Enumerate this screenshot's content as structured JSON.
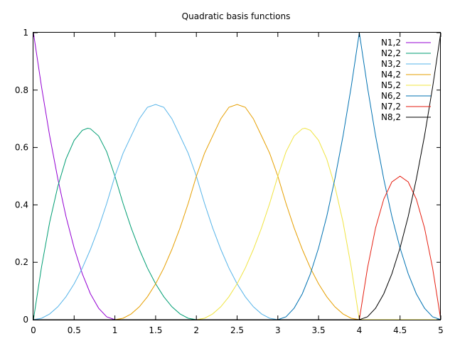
{
  "chart_data": {
    "type": "line",
    "title": "Quadratic basis functions",
    "xlabel": "",
    "ylabel": "",
    "xlim": [
      0,
      5
    ],
    "ylim": [
      0,
      1
    ],
    "grid": false,
    "legend_position": "top-right",
    "x_ticks": [
      {
        "value": 0,
        "label": "0"
      },
      {
        "value": 0.5,
        "label": "0.5"
      },
      {
        "value": 1,
        "label": "1"
      },
      {
        "value": 1.5,
        "label": "1.5"
      },
      {
        "value": 2,
        "label": "2"
      },
      {
        "value": 2.5,
        "label": "2.5"
      },
      {
        "value": 3,
        "label": "3"
      },
      {
        "value": 3.5,
        "label": "3.5"
      },
      {
        "value": 4,
        "label": "4"
      },
      {
        "value": 4.5,
        "label": "4.5"
      },
      {
        "value": 5,
        "label": "5"
      }
    ],
    "y_ticks": [
      {
        "value": 0,
        "label": "0"
      },
      {
        "value": 0.2,
        "label": "0.2"
      },
      {
        "value": 0.4,
        "label": "0.4"
      },
      {
        "value": 0.6,
        "label": "0.6"
      },
      {
        "value": 0.8,
        "label": "0.8"
      },
      {
        "value": 1,
        "label": "1"
      }
    ],
    "series": [
      {
        "name": "N1,2",
        "color": "#9400d3",
        "points": [
          [
            0,
            1
          ],
          [
            0.1,
            0.81
          ],
          [
            0.2,
            0.64
          ],
          [
            0.3,
            0.49
          ],
          [
            0.4,
            0.36
          ],
          [
            0.5,
            0.25
          ],
          [
            0.6,
            0.16
          ],
          [
            0.7,
            0.09
          ],
          [
            0.8,
            0.04
          ],
          [
            0.9,
            0.01
          ],
          [
            1,
            0
          ]
        ]
      },
      {
        "name": "N2,2",
        "color": "#009e73",
        "points": [
          [
            0,
            0
          ],
          [
            0.1,
            0.185
          ],
          [
            0.2,
            0.34
          ],
          [
            0.3,
            0.465
          ],
          [
            0.4,
            0.56
          ],
          [
            0.5,
            0.625
          ],
          [
            0.6,
            0.66
          ],
          [
            0.667,
            0.667
          ],
          [
            0.7,
            0.665
          ],
          [
            0.8,
            0.64
          ],
          [
            0.9,
            0.585
          ],
          [
            1,
            0.5
          ],
          [
            1.1,
            0.405
          ],
          [
            1.2,
            0.32
          ],
          [
            1.3,
            0.245
          ],
          [
            1.4,
            0.18
          ],
          [
            1.5,
            0.125
          ],
          [
            1.6,
            0.08
          ],
          [
            1.7,
            0.045
          ],
          [
            1.8,
            0.02
          ],
          [
            1.9,
            0.005
          ],
          [
            2,
            0
          ]
        ]
      },
      {
        "name": "N3,2",
        "color": "#56b4e9",
        "points": [
          [
            0,
            0
          ],
          [
            0.1,
            0.005
          ],
          [
            0.2,
            0.02
          ],
          [
            0.3,
            0.045
          ],
          [
            0.4,
            0.08
          ],
          [
            0.5,
            0.125
          ],
          [
            0.6,
            0.18
          ],
          [
            0.7,
            0.245
          ],
          [
            0.8,
            0.32
          ],
          [
            0.9,
            0.405
          ],
          [
            1,
            0.5
          ],
          [
            1.1,
            0.58
          ],
          [
            1.2,
            0.64
          ],
          [
            1.3,
            0.7
          ],
          [
            1.4,
            0.74
          ],
          [
            1.5,
            0.75
          ],
          [
            1.6,
            0.74
          ],
          [
            1.7,
            0.7
          ],
          [
            1.8,
            0.64
          ],
          [
            1.9,
            0.58
          ],
          [
            2,
            0.5
          ],
          [
            2.1,
            0.405
          ],
          [
            2.2,
            0.32
          ],
          [
            2.3,
            0.245
          ],
          [
            2.4,
            0.18
          ],
          [
            2.5,
            0.125
          ],
          [
            2.6,
            0.08
          ],
          [
            2.7,
            0.045
          ],
          [
            2.8,
            0.02
          ],
          [
            2.9,
            0.005
          ],
          [
            3,
            0
          ]
        ]
      },
      {
        "name": "N4,2",
        "color": "#e69f00",
        "points": [
          [
            0,
            0
          ],
          [
            1,
            0
          ],
          [
            1.1,
            0.005
          ],
          [
            1.2,
            0.02
          ],
          [
            1.3,
            0.045
          ],
          [
            1.4,
            0.08
          ],
          [
            1.5,
            0.125
          ],
          [
            1.6,
            0.18
          ],
          [
            1.7,
            0.245
          ],
          [
            1.8,
            0.32
          ],
          [
            1.9,
            0.405
          ],
          [
            2,
            0.5
          ],
          [
            2.1,
            0.58
          ],
          [
            2.2,
            0.64
          ],
          [
            2.3,
            0.7
          ],
          [
            2.4,
            0.74
          ],
          [
            2.5,
            0.75
          ],
          [
            2.6,
            0.74
          ],
          [
            2.7,
            0.7
          ],
          [
            2.8,
            0.64
          ],
          [
            2.9,
            0.58
          ],
          [
            3,
            0.5
          ],
          [
            3.1,
            0.405
          ],
          [
            3.2,
            0.32
          ],
          [
            3.3,
            0.245
          ],
          [
            3.4,
            0.18
          ],
          [
            3.5,
            0.125
          ],
          [
            3.6,
            0.08
          ],
          [
            3.7,
            0.045
          ],
          [
            3.8,
            0.02
          ],
          [
            3.9,
            0.005
          ],
          [
            4,
            0
          ],
          [
            5,
            0
          ]
        ]
      },
      {
        "name": "N5,2",
        "color": "#f0e442",
        "points": [
          [
            0,
            0
          ],
          [
            2,
            0
          ],
          [
            2.1,
            0.005
          ],
          [
            2.2,
            0.02
          ],
          [
            2.3,
            0.045
          ],
          [
            2.4,
            0.08
          ],
          [
            2.5,
            0.125
          ],
          [
            2.6,
            0.18
          ],
          [
            2.7,
            0.245
          ],
          [
            2.8,
            0.32
          ],
          [
            2.9,
            0.405
          ],
          [
            3,
            0.5
          ],
          [
            3.1,
            0.585
          ],
          [
            3.2,
            0.64
          ],
          [
            3.3,
            0.665
          ],
          [
            3.333,
            0.667
          ],
          [
            3.4,
            0.66
          ],
          [
            3.5,
            0.625
          ],
          [
            3.6,
            0.56
          ],
          [
            3.7,
            0.465
          ],
          [
            3.8,
            0.34
          ],
          [
            3.9,
            0.185
          ],
          [
            4,
            0
          ],
          [
            5,
            0
          ]
        ]
      },
      {
        "name": "N6,2",
        "color": "#0072b2",
        "points": [
          [
            0,
            0
          ],
          [
            3,
            0
          ],
          [
            3.1,
            0.01
          ],
          [
            3.2,
            0.04
          ],
          [
            3.3,
            0.09
          ],
          [
            3.4,
            0.16
          ],
          [
            3.5,
            0.25
          ],
          [
            3.6,
            0.36
          ],
          [
            3.7,
            0.49
          ],
          [
            3.8,
            0.64
          ],
          [
            3.9,
            0.81
          ],
          [
            4,
            1
          ],
          [
            4.1,
            0.81
          ],
          [
            4.2,
            0.64
          ],
          [
            4.3,
            0.49
          ],
          [
            4.4,
            0.36
          ],
          [
            4.5,
            0.25
          ],
          [
            4.6,
            0.16
          ],
          [
            4.7,
            0.09
          ],
          [
            4.8,
            0.04
          ],
          [
            4.9,
            0.01
          ],
          [
            5,
            0
          ]
        ]
      },
      {
        "name": "N7,2",
        "color": "#e51e10",
        "points": [
          [
            0,
            0
          ],
          [
            4,
            0
          ],
          [
            4.1,
            0.18
          ],
          [
            4.2,
            0.32
          ],
          [
            4.3,
            0.42
          ],
          [
            4.4,
            0.48
          ],
          [
            4.5,
            0.5
          ],
          [
            4.6,
            0.48
          ],
          [
            4.7,
            0.42
          ],
          [
            4.8,
            0.32
          ],
          [
            4.9,
            0.18
          ],
          [
            5,
            0
          ]
        ]
      },
      {
        "name": "N8,2",
        "color": "#000000",
        "points": [
          [
            0,
            0
          ],
          [
            4,
            0
          ],
          [
            4.1,
            0.01
          ],
          [
            4.2,
            0.04
          ],
          [
            4.3,
            0.09
          ],
          [
            4.4,
            0.16
          ],
          [
            4.5,
            0.25
          ],
          [
            4.6,
            0.36
          ],
          [
            4.7,
            0.49
          ],
          [
            4.8,
            0.64
          ],
          [
            4.9,
            0.81
          ],
          [
            5,
            1
          ]
        ]
      }
    ]
  }
}
